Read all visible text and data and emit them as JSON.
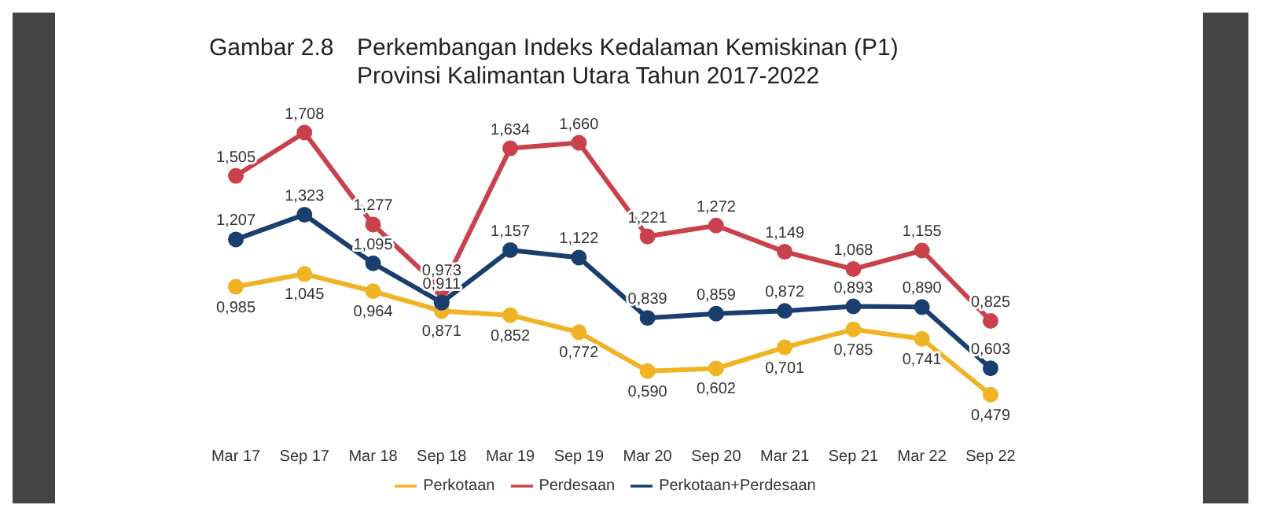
{
  "chart_data": {
    "type": "line",
    "title": "Perkembangan Indeks Kedalaman Kemiskinan (P1)",
    "subtitle": "Provinsi Kalimantan Utara Tahun 2017-2022",
    "annotations": [
      "Gambar 2.8"
    ],
    "categories": [
      "Mar 17",
      "Sep 17",
      "Mar 18",
      "Sep 18",
      "Mar 19",
      "Sep 19",
      "Mar 20",
      "Sep 20",
      "Mar 21",
      "Sep 21",
      "Mar 22",
      "Sep 22"
    ],
    "series": [
      {
        "name": "Perkotaan",
        "color": "#f0b323",
        "values": [
          0.985,
          1.045,
          0.964,
          0.871,
          0.852,
          0.772,
          0.59,
          0.602,
          0.701,
          0.785,
          0.741,
          0.479
        ],
        "value_labels": [
          "0,985",
          "1,045",
          "0,964",
          "0,871",
          "0,852",
          "0,772",
          "0,590",
          "0,602",
          "0,701",
          "0,785",
          "0,741",
          "0,479"
        ]
      },
      {
        "name": "Perdesaan",
        "color": "#c8414b",
        "values": [
          1.505,
          1.708,
          1.277,
          0.973,
          1.634,
          1.66,
          1.221,
          1.272,
          1.149,
          1.068,
          1.155,
          0.825
        ],
        "value_labels": [
          "1,505",
          "1,708",
          "1,277",
          "0,973",
          "1,634",
          "1,660",
          "1,221",
          "1,272",
          "1,149",
          "1,068",
          "1,155",
          "0,825"
        ]
      },
      {
        "name": "Perkotaan+Perdesaan",
        "color": "#1a3e6e",
        "values": [
          1.207,
          1.323,
          1.095,
          0.911,
          1.157,
          1.122,
          0.839,
          0.859,
          0.872,
          0.893,
          0.89,
          0.603
        ],
        "value_labels": [
          "1,207",
          "1,323",
          "1,095",
          "0,911",
          "1,157",
          "1,122",
          "0,839",
          "0,859",
          "0,872",
          "0,893",
          "0,890",
          "0,603"
        ]
      }
    ],
    "marker": "circle",
    "line_style": "solid",
    "grid": false,
    "legend": "bottom"
  }
}
